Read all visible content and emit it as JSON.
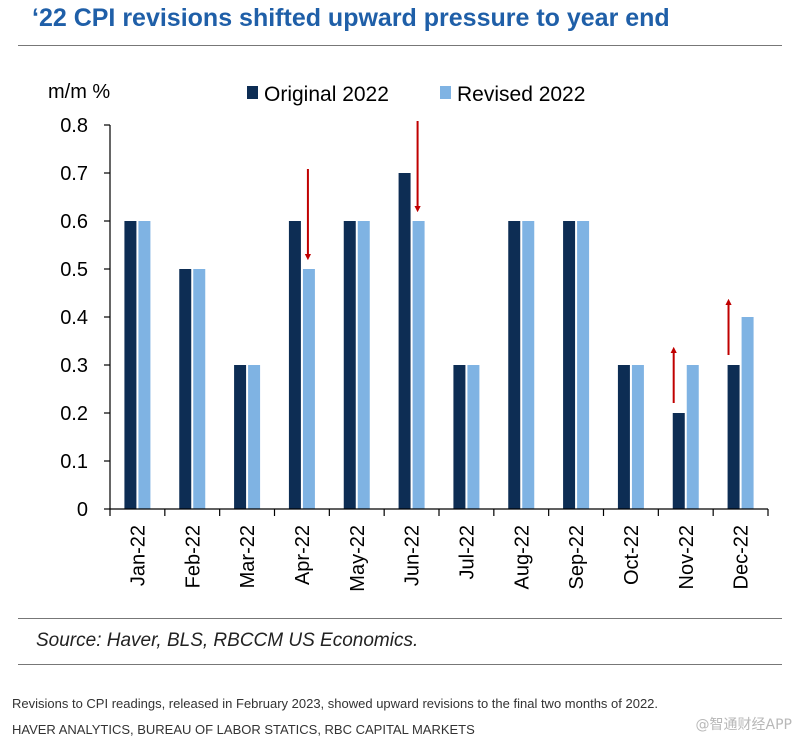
{
  "title": "‘22 CPI revisions shifted upward pressure to year end",
  "source": "Source: Haver, BLS, RBCCM US Economics.",
  "caption": "Revisions to CPI readings, released in February 2023, showed upward revisions to the final two months of 2022.",
  "credit": "Haver Analytics, Bureau of Labor Statics, RBC Capital Markets",
  "watermark": "@智通财经APP",
  "colors": {
    "original": "#0d2d54",
    "revised": "#7fb3e3",
    "arrow": "#c00000",
    "title": "#1f5fa8"
  },
  "chart_data": {
    "type": "bar",
    "title": "‘22 CPI revisions shifted upward pressure to year end",
    "ylabel": "m/m %",
    "ylim": [
      0,
      0.8
    ],
    "yticks": [
      "0",
      "0.1",
      "0.2",
      "0.3",
      "0.4",
      "0.5",
      "0.6",
      "0.7",
      "0.8"
    ],
    "categories": [
      "Jan-22",
      "Feb-22",
      "Mar-22",
      "Apr-22",
      "May-22",
      "Jun-22",
      "Jul-22",
      "Aug-22",
      "Sep-22",
      "Oct-22",
      "Nov-22",
      "Dec-22"
    ],
    "series": [
      {
        "name": "Original 2022",
        "values": [
          0.6,
          0.5,
          0.3,
          0.6,
          0.6,
          0.7,
          0.3,
          0.6,
          0.6,
          0.3,
          0.2,
          0.3
        ]
      },
      {
        "name": "Revised 2022",
        "values": [
          0.6,
          0.5,
          0.3,
          0.5,
          0.6,
          0.6,
          0.3,
          0.6,
          0.6,
          0.3,
          0.3,
          0.4
        ]
      }
    ],
    "legend_position": "top",
    "grid": false,
    "annotations": [
      {
        "category": "Apr-22",
        "type": "arrow",
        "direction": "down"
      },
      {
        "category": "Jun-22",
        "type": "arrow",
        "direction": "down"
      },
      {
        "category": "Nov-22",
        "type": "arrow",
        "direction": "up"
      },
      {
        "category": "Dec-22",
        "type": "arrow",
        "direction": "up"
      }
    ]
  }
}
